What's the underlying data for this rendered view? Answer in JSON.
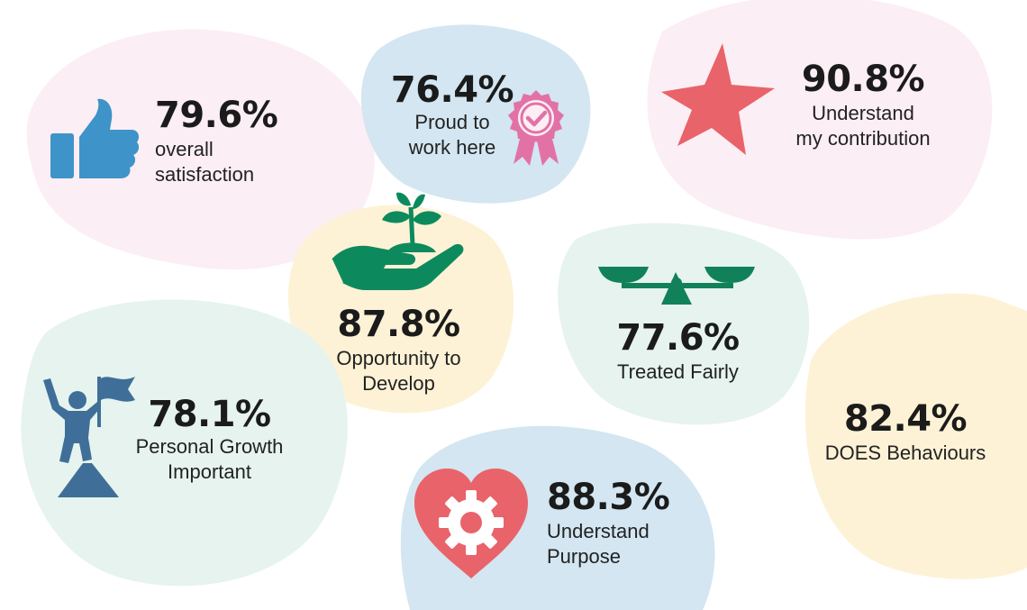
{
  "colors": {
    "pink_bg": "#fbeef4",
    "blue_bg": "#d3e6f1",
    "yellow_bg": "#fdf2d6",
    "mint_bg": "#e6f3ef",
    "thumb_blue": "#3e93c8",
    "badge_pink": "#e272a6",
    "star_red": "#e9636a",
    "plant_green": "#0d8a5d",
    "scale_green": "#11815a",
    "climber_blue": "#3f6f98",
    "heart_red": "#e9636a",
    "text": "#1b1b1b"
  },
  "stats": {
    "satisfaction": {
      "value": "79.6%",
      "line1": "overall",
      "line2": "satisfaction",
      "icon": "thumbs-up-icon"
    },
    "proud": {
      "value": "76.4%",
      "line1": "Proud to",
      "line2": "work here",
      "icon": "award-rosette-icon"
    },
    "contribution": {
      "value": "90.8%",
      "line1": "Understand",
      "line2": "my contribution",
      "icon": "star-icon"
    },
    "develop": {
      "value": "87.8%",
      "line1": "Opportunity to",
      "line2": "Develop",
      "icon": "sprout-in-hand-icon"
    },
    "fairly": {
      "value": "77.6%",
      "line1": "Treated Fairly",
      "icon": "balance-scale-icon"
    },
    "growth": {
      "value": "78.1%",
      "line1": "Personal Growth",
      "line2": "Important",
      "icon": "mountain-climber-flag-icon"
    },
    "does": {
      "value": "82.4%",
      "line1": "DOES Behaviours"
    },
    "purpose": {
      "value": "88.3%",
      "line1": "Understand",
      "line2": "Purpose",
      "icon": "heart-gear-icon"
    }
  }
}
